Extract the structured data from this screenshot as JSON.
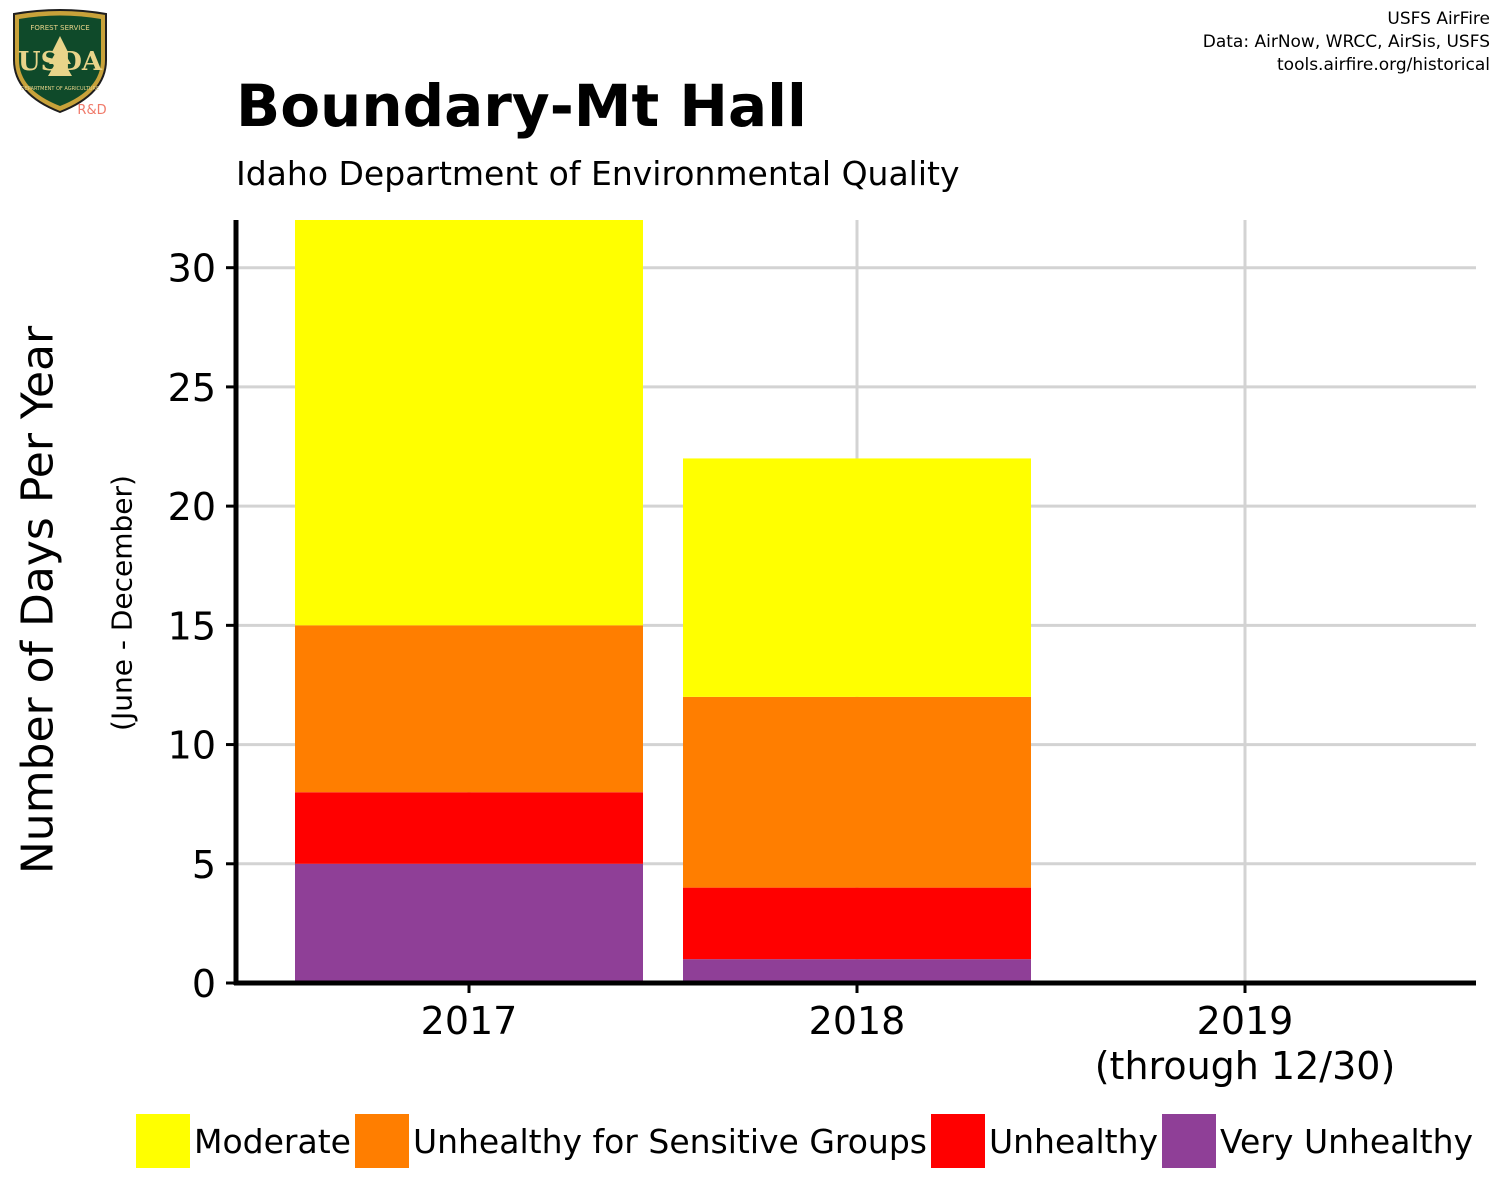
{
  "logo": {
    "shield_text_top": "FOREST SERVICE",
    "shield_letters": "USDA",
    "shield_text_bottom": "DEPARTMENT OF AGRICULTURE",
    "badge": "R&D"
  },
  "credits": [
    "USFS AirFire",
    "Data: AirNow, WRCC, AirSis, USFS",
    "tools.airfire.org/historical"
  ],
  "colors": {
    "Moderate": "#ffff00",
    "Unhealthy for Sensitive Groups": "#ff7e00",
    "Unhealthy": "#ff0000",
    "Very Unhealthy": "#8f3f97",
    "grid": "#d3d3d3",
    "axis": "#000000"
  },
  "chart_data": {
    "type": "bar",
    "stacked": true,
    "title": "Boundary-Mt Hall",
    "subtitle": "Idaho Department of Environmental Quality",
    "ylabel": "Number of Days Per Year",
    "ylabel_sub": "(June - December)",
    "xlabel": "",
    "categories": [
      "2017",
      "2018",
      "2019"
    ],
    "category_sublabels": [
      "",
      "",
      "(through 12/30)"
    ],
    "ylim": [
      0,
      32
    ],
    "yticks": [
      0,
      5,
      10,
      15,
      20,
      25,
      30
    ],
    "grid": true,
    "legend_position": "bottom",
    "series": [
      {
        "name": "Very Unhealthy",
        "values": [
          5,
          1,
          0
        ]
      },
      {
        "name": "Unhealthy",
        "values": [
          3,
          3,
          0
        ]
      },
      {
        "name": "Unhealthy for Sensitive Groups",
        "values": [
          7,
          8,
          0
        ]
      },
      {
        "name": "Moderate",
        "values": [
          17,
          10,
          0
        ]
      }
    ],
    "legend_order": [
      "Moderate",
      "Unhealthy for Sensitive Groups",
      "Unhealthy",
      "Very Unhealthy"
    ]
  }
}
